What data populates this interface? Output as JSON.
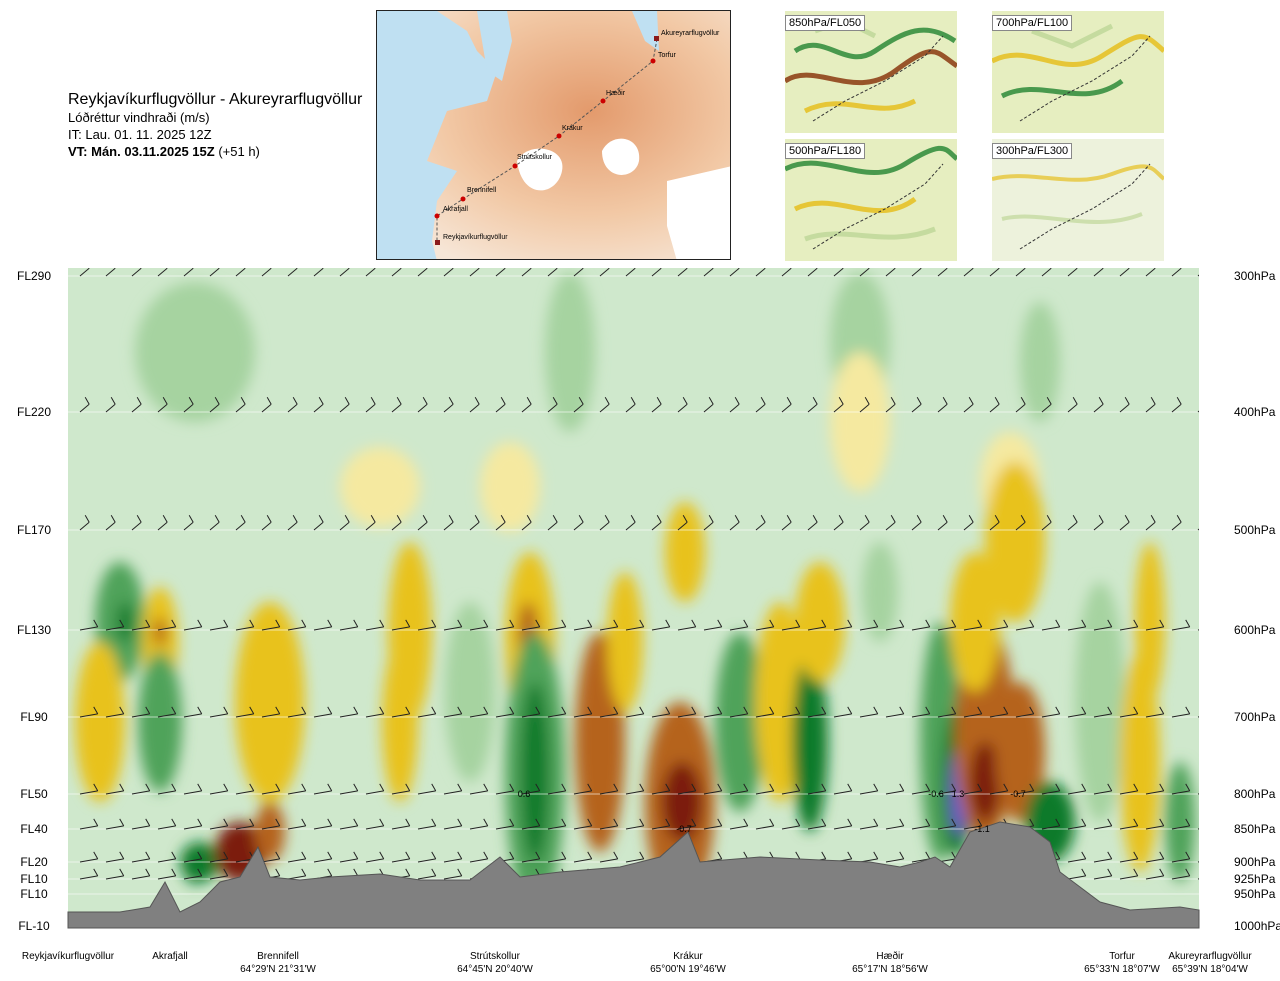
{
  "header": {
    "route": "Reykjavíkurflugvöllur - Akureyrarflugvöllur",
    "parameter": "Lóðréttur vindhraði (m/s)",
    "initial_time": "IT: Lau. 01. 11. 2025 12Z",
    "valid_label": "VT: Mán. 03.11.2025 15Z",
    "valid_offset": "(+51 h)"
  },
  "map": {
    "points": [
      "Akureyrarflugvöllur",
      "Torfur",
      "Hæðir",
      "Krákur",
      "Strútskollur",
      "Brennifell",
      "Akrafjall",
      "Reykjavíkurflugvöllur"
    ]
  },
  "thumbnails": [
    {
      "label": "850hPa/FL050"
    },
    {
      "label": "700hPa/FL100"
    },
    {
      "label": "500hPa/FL180"
    },
    {
      "label": "300hPa/FL300"
    }
  ],
  "chart_data": {
    "type": "heatmap",
    "title": "Lóðréttur vindhraði (m/s)",
    "left_axis": [
      "FL290",
      "FL220",
      "FL170",
      "FL130",
      "FL90",
      "FL50",
      "FL40",
      "FL20",
      "FL10",
      "FL10",
      "FL-10"
    ],
    "right_axis": [
      "300hPa",
      "400hPa",
      "500hPa",
      "600hPa",
      "700hPa",
      "800hPa",
      "850hPa",
      "900hPa",
      "925hPa",
      "950hPa",
      "1000hPa"
    ],
    "pressure_levels_hpa": [
      300,
      400,
      500,
      600,
      700,
      800,
      850,
      900,
      925,
      950,
      1000
    ],
    "waypoints": [
      {
        "name": "Reykjavíkurflugvöllur",
        "coord": ""
      },
      {
        "name": "Akrafjall",
        "coord": ""
      },
      {
        "name": "Brennifell",
        "coord": "64°29'N 21°31'W"
      },
      {
        "name": "Strútskollur",
        "coord": "64°45'N 20°40'W"
      },
      {
        "name": "Krákur",
        "coord": "65°00'N 19°46'W"
      },
      {
        "name": "Hæðir",
        "coord": "65°17'N 18°56'W"
      },
      {
        "name": "Torfur",
        "coord": "65°33'N 18°07'W"
      },
      {
        "name": "Akureyrarflugvöllur",
        "coord": "65°39'N 18°04'W"
      }
    ],
    "annotations": [
      "0.6",
      "-0.6",
      "1.3",
      "-0.7",
      "-0.7",
      "-1.1"
    ],
    "colors": {
      "strong_down": "#7b1c10",
      "down2": "#b5641a",
      "down1": "#e8c21a",
      "down0": "#f5e9a0",
      "neutral": "#cfe8cc",
      "up1": "#a6d3a0",
      "up2": "#4fa35a",
      "up3": "#0b7a2b",
      "strong_up": "#6a5cc8",
      "terrain": "#808080"
    }
  }
}
